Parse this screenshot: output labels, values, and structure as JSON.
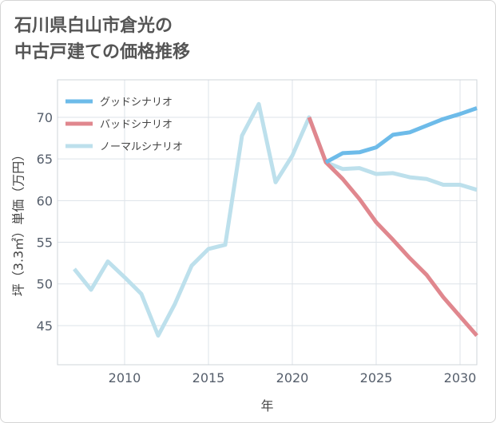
{
  "title_lines": [
    "石川県白山市倉光の",
    "中古戸建ての価格推移"
  ],
  "chart_data": {
    "type": "line",
    "xlabel": "年",
    "ylabel": "坪（3.3㎡）単価（万円）",
    "xlim": [
      2006,
      2031
    ],
    "ylim": [
      40.3,
      74.5
    ],
    "xticks": [
      2010,
      2015,
      2020,
      2025,
      2030
    ],
    "yticks": [
      45,
      50,
      55,
      60,
      65,
      70
    ],
    "grid": true,
    "legend_position": "top-left",
    "series": [
      {
        "name": "ノーマルシナリオ",
        "color": "#bde0ec",
        "x": [
          2007,
          2008,
          2009,
          2010,
          2011,
          2012,
          2013,
          2014,
          2015,
          2016,
          2017,
          2018,
          2019,
          2020,
          2021,
          2022,
          2023,
          2024,
          2025,
          2026,
          2027,
          2028,
          2029,
          2030,
          2031
        ],
        "y": [
          51.8,
          49.3,
          52.7,
          50.8,
          48.8,
          43.8,
          47.6,
          52.2,
          54.2,
          54.7,
          67.8,
          71.6,
          62.2,
          65.4,
          70.0,
          64.6,
          63.8,
          63.9,
          63.2,
          63.3,
          62.8,
          62.6,
          61.9,
          61.9,
          61.3
        ]
      },
      {
        "name": "バッドシナリオ",
        "color": "#e0878e",
        "x": [
          2021,
          2022,
          2023,
          2024,
          2025,
          2026,
          2027,
          2028,
          2029,
          2030,
          2031
        ],
        "y": [
          70.0,
          64.6,
          62.6,
          60.2,
          57.4,
          55.3,
          53.1,
          51.1,
          48.4,
          46.1,
          43.8
        ]
      },
      {
        "name": "グッドシナリオ",
        "color": "#6dbbe9",
        "x": [
          2022,
          2023,
          2024,
          2025,
          2026,
          2027,
          2028,
          2029,
          2030,
          2031
        ],
        "y": [
          64.6,
          65.7,
          65.8,
          66.4,
          67.9,
          68.2,
          69.0,
          69.8,
          70.4,
          71.1
        ]
      }
    ],
    "legend_order": [
      "グッドシナリオ",
      "バッドシナリオ",
      "ノーマルシナリオ"
    ]
  }
}
